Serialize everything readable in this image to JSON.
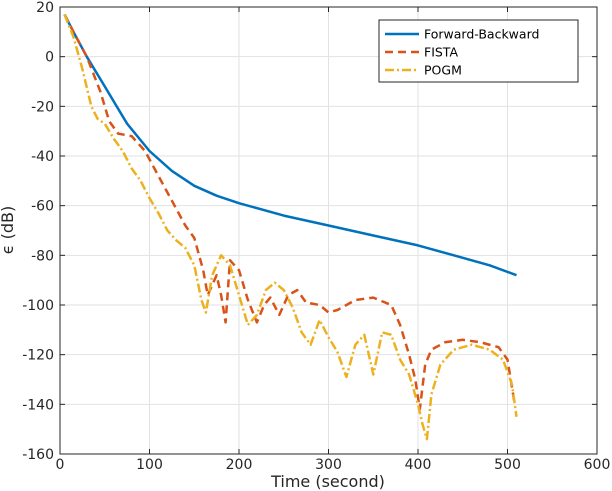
{
  "chart_data": {
    "type": "line",
    "title": "",
    "xlabel": "Time (second)",
    "ylabel": "ϵ (dB)",
    "xlim": [
      0,
      600
    ],
    "ylim": [
      -160,
      20
    ],
    "xticks": [
      0,
      100,
      200,
      300,
      400,
      500,
      600
    ],
    "yticks": [
      -160,
      -140,
      -120,
      -100,
      -80,
      -60,
      -40,
      -20,
      0,
      20
    ],
    "grid": true,
    "legend_position": "top-right",
    "series": [
      {
        "name": "Forward-Backward",
        "color": "#0072bd",
        "dash": "solid",
        "x": [
          5,
          15,
          30,
          50,
          75,
          100,
          125,
          150,
          175,
          200,
          250,
          300,
          350,
          400,
          450,
          480,
          510
        ],
        "y": [
          17,
          10,
          0,
          -12,
          -27,
          -38,
          -46,
          -52,
          -56,
          -59,
          -64,
          -68,
          -72,
          -76,
          -81,
          -84,
          -88
        ]
      },
      {
        "name": "FISTA",
        "color": "#d95319",
        "dash": "dashed",
        "x": [
          5,
          15,
          30,
          45,
          55,
          65,
          80,
          95,
          110,
          125,
          140,
          150,
          160,
          165,
          170,
          175,
          180,
          185,
          190,
          200,
          210,
          220,
          228,
          235,
          245,
          255,
          265,
          275,
          290,
          300,
          310,
          330,
          350,
          370,
          380,
          390,
          397,
          402,
          408,
          415,
          430,
          450,
          470,
          490,
          500,
          508
        ],
        "y": [
          17,
          10,
          0,
          -14,
          -26,
          -31,
          -32,
          -38,
          -48,
          -58,
          -68,
          -73,
          -86,
          -96,
          -92,
          -88,
          -96,
          -107,
          -82,
          -86,
          -98,
          -107,
          -100,
          -97,
          -104,
          -96,
          -94,
          -99,
          -100,
          -103,
          -102,
          -98,
          -97,
          -100,
          -108,
          -120,
          -130,
          -142,
          -124,
          -118,
          -115,
          -114,
          -115,
          -117,
          -122,
          -140
        ]
      },
      {
        "name": "POGM",
        "color": "#edb120",
        "dash": "dashdot",
        "x": [
          5,
          15,
          25,
          35,
          42,
          50,
          60,
          70,
          80,
          90,
          100,
          110,
          120,
          130,
          140,
          150,
          158,
          163,
          170,
          180,
          190,
          200,
          210,
          220,
          230,
          240,
          250,
          260,
          270,
          280,
          290,
          300,
          310,
          320,
          330,
          340,
          350,
          360,
          370,
          380,
          390,
          400,
          405,
          410,
          415,
          425,
          440,
          460,
          480,
          495,
          505,
          510
        ],
        "y": [
          17,
          8,
          -5,
          -20,
          -25,
          -27,
          -33,
          -38,
          -45,
          -50,
          -57,
          -63,
          -70,
          -74,
          -77,
          -84,
          -98,
          -103,
          -88,
          -80,
          -84,
          -96,
          -108,
          -104,
          -94,
          -91,
          -94,
          -101,
          -111,
          -116,
          -106,
          -113,
          -119,
          -129,
          -116,
          -112,
          -128,
          -111,
          -112,
          -122,
          -128,
          -140,
          -148,
          -154,
          -136,
          -124,
          -118,
          -116,
          -118,
          -122,
          -132,
          -145
        ]
      }
    ]
  }
}
